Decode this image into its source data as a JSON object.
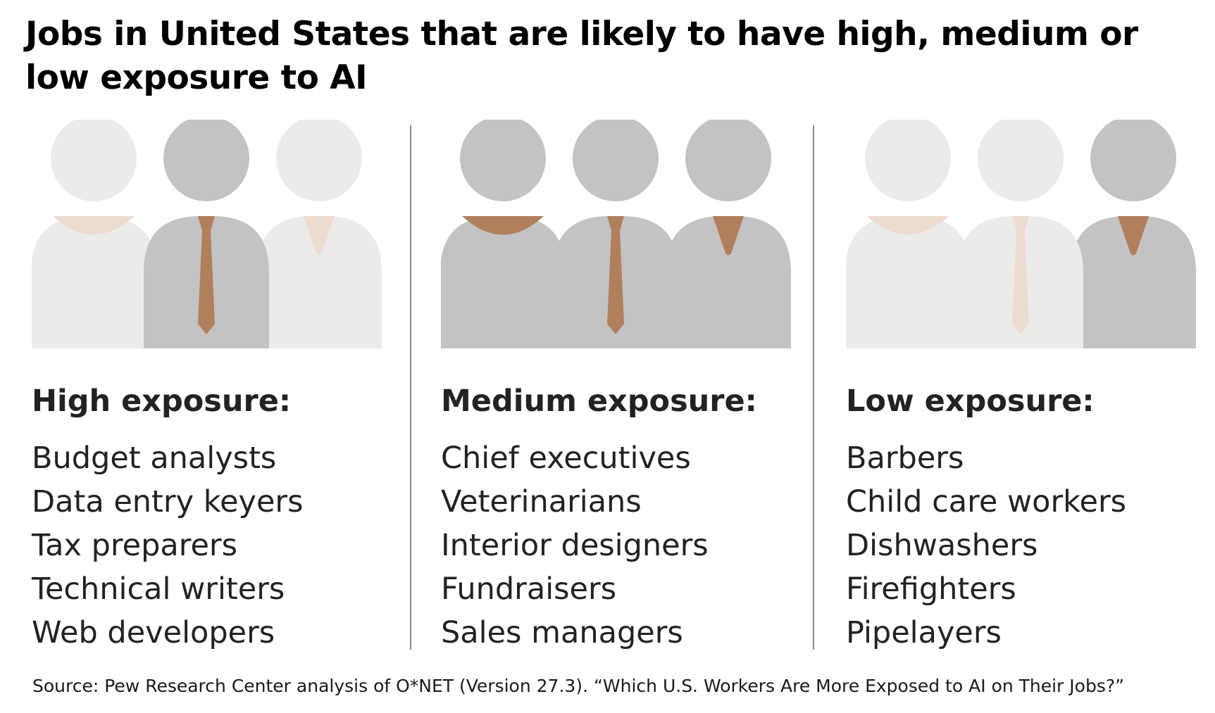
{
  "title": "Jobs in United States that are likely to have high, medium or low exposure to AI",
  "colors": {
    "figure_dark": "#c2c3c2",
    "figure_light": "#ebecea",
    "accent_dark": "#b07f5c",
    "accent_light": "#ecdcd0"
  },
  "columns": [
    {
      "heading": "High exposure:",
      "figures": [
        {
          "shade": "light",
          "accessory": "collar"
        },
        {
          "shade": "dark",
          "accessory": "tie"
        },
        {
          "shade": "light",
          "accessory": "vneck"
        }
      ],
      "jobs": [
        "Budget analysts",
        "Data entry keyers",
        "Tax preparers",
        "Technical writers",
        "Web developers"
      ]
    },
    {
      "heading": "Medium exposure:",
      "figures": [
        {
          "shade": "dark",
          "accessory": "collar"
        },
        {
          "shade": "dark",
          "accessory": "tie"
        },
        {
          "shade": "dark",
          "accessory": "vneck"
        }
      ],
      "jobs": [
        "Chief executives",
        "Veterinarians",
        "Interior designers",
        "Fundraisers",
        "Sales managers"
      ]
    },
    {
      "heading": "Low exposure:",
      "figures": [
        {
          "shade": "light",
          "accessory": "collar"
        },
        {
          "shade": "light",
          "accessory": "tie"
        },
        {
          "shade": "dark",
          "accessory": "vneck"
        }
      ],
      "jobs": [
        "Barbers",
        "Child care workers",
        "Dishwashers",
        "Firefighters",
        "Pipelayers"
      ]
    }
  ],
  "source": "Source: Pew Research Center analysis of O*NET (Version 27.3). “Which U.S. Workers Are More Exposed to AI on Their Jobs?”"
}
